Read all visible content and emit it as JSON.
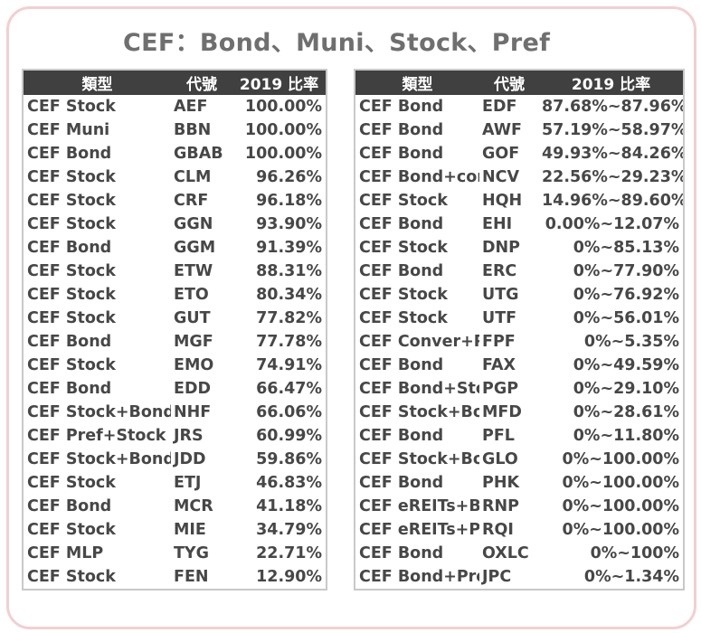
{
  "title": "CEF：Bond、Muni、Stock、Pref",
  "headers": {
    "type": "類型",
    "code": "代號",
    "rate": "2019 比率"
  },
  "left_rows": [
    {
      "type": "CEF Stock",
      "code": "AEF",
      "rate": "100.00%"
    },
    {
      "type": "CEF Muni",
      "code": "BBN",
      "rate": "100.00%"
    },
    {
      "type": "CEF Bond",
      "code": "GBAB",
      "rate": "100.00%"
    },
    {
      "type": "CEF Stock",
      "code": "CLM",
      "rate": "96.26%"
    },
    {
      "type": "CEF Stock",
      "code": "CRF",
      "rate": "96.18%"
    },
    {
      "type": "CEF Stock",
      "code": "GGN",
      "rate": "93.90%"
    },
    {
      "type": "CEF Bond",
      "code": "GGM",
      "rate": "91.39%"
    },
    {
      "type": "CEF Stock",
      "code": "ETW",
      "rate": "88.31%"
    },
    {
      "type": "CEF Stock",
      "code": "ETO",
      "rate": "80.34%"
    },
    {
      "type": "CEF Stock",
      "code": "GUT",
      "rate": "77.82%"
    },
    {
      "type": "CEF Bond",
      "code": "MGF",
      "rate": "77.78%"
    },
    {
      "type": "CEF Stock",
      "code": "EMO",
      "rate": "74.91%"
    },
    {
      "type": "CEF Bond",
      "code": "EDD",
      "rate": "66.47%"
    },
    {
      "type": "CEF Stock+Bond",
      "code": "NHF",
      "rate": "66.06%"
    },
    {
      "type": "CEF Pref+Stock",
      "code": "JRS",
      "rate": "60.99%"
    },
    {
      "type": "CEF Stock+Bond",
      "code": "JDD",
      "rate": "59.86%"
    },
    {
      "type": "CEF Stock",
      "code": "ETJ",
      "rate": "46.83%"
    },
    {
      "type": "CEF Bond",
      "code": "MCR",
      "rate": "41.18%"
    },
    {
      "type": "CEF Stock",
      "code": "MIE",
      "rate": "34.79%"
    },
    {
      "type": "CEF MLP",
      "code": "TYG",
      "rate": "22.71%"
    },
    {
      "type": "CEF Stock",
      "code": "FEN",
      "rate": "12.90%"
    }
  ],
  "right_rows": [
    {
      "type": "CEF Bond",
      "code": "EDF",
      "rate": "87.68%~87.96%"
    },
    {
      "type": "CEF Bond",
      "code": "AWF",
      "rate": "57.19%~58.97%"
    },
    {
      "type": "CEF Bond",
      "code": "GOF",
      "rate": "49.93%~84.26%"
    },
    {
      "type": "CEF Bond+conv",
      "code": "NCV",
      "rate": "22.56%~29.23%"
    },
    {
      "type": "CEF Stock",
      "code": "HQH",
      "rate": "14.96%~89.60%"
    },
    {
      "type": "CEF Bond",
      "code": "EHI",
      "rate": "0.00%~12.07%"
    },
    {
      "type": "CEF Stock",
      "code": "DNP",
      "rate": "0%~85.13%"
    },
    {
      "type": "CEF Bond",
      "code": "ERC",
      "rate": "0%~77.90%"
    },
    {
      "type": "CEF Stock",
      "code": "UTG",
      "rate": "0%~76.92%"
    },
    {
      "type": "CEF Stock",
      "code": "UTF",
      "rate": "0%~56.01%"
    },
    {
      "type": "CEF Conver+Pr",
      "code": "FPF",
      "rate": "0%~5.35%"
    },
    {
      "type": "CEF Bond",
      "code": "FAX",
      "rate": "0%~49.59%"
    },
    {
      "type": "CEF Bond+Stoc",
      "code": "PGP",
      "rate": "0%~29.10%"
    },
    {
      "type": "CEF Stock+Bon",
      "code": "MFD",
      "rate": "0%~28.61%"
    },
    {
      "type": "CEF Bond",
      "code": "PFL",
      "rate": "0%~11.80%"
    },
    {
      "type": "CEF Stock+Bon",
      "code": "GLO",
      "rate": "0%~100.00%"
    },
    {
      "type": "CEF Bond",
      "code": "PHK",
      "rate": "0%~100.00%"
    },
    {
      "type": "CEF eREITs+Bc",
      "code": "RNP",
      "rate": "0%~100.00%"
    },
    {
      "type": "CEF eREITs+Pr",
      "code": "RQI",
      "rate": "0%~100.00%"
    },
    {
      "type": "CEF Bond",
      "code": "OXLC",
      "rate": "0%~100%"
    },
    {
      "type": "CEF Bond+Pref",
      "code": "JPC",
      "rate": "0%~1.34%"
    }
  ]
}
